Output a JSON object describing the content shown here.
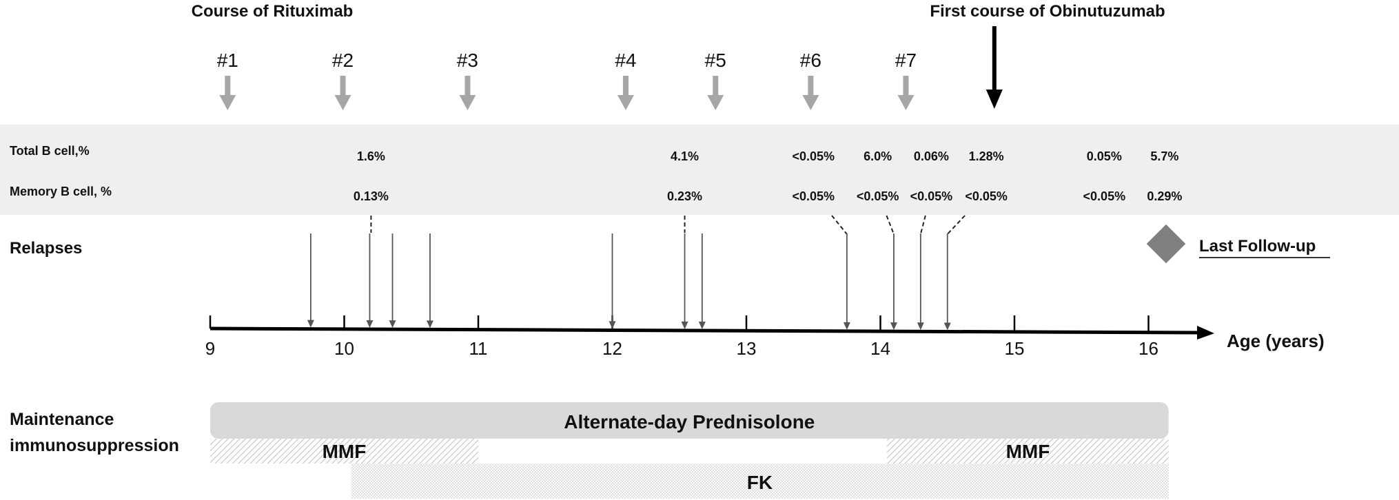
{
  "header": {
    "rituximab_title": "Course of Rituximab",
    "obinutuzumab_title": "First course of Obinutuzumab"
  },
  "rituximab_courses": [
    {
      "label": "#1",
      "age": 9.13
    },
    {
      "label": "#2",
      "age": 9.99
    },
    {
      "label": "#3",
      "age": 10.92
    },
    {
      "label": "#4",
      "age": 12.1
    },
    {
      "label": "#5",
      "age": 12.77
    },
    {
      "label": "#6",
      "age": 13.48
    },
    {
      "label": "#7",
      "age": 14.19
    }
  ],
  "obinutuzumab_course": {
    "age": 14.85
  },
  "bcells": {
    "total_label": "Total B cell,%",
    "memory_label": "Memory B cell, %",
    "measurements": [
      {
        "age": 10.2,
        "total": "1.6%",
        "memory": "0.13%",
        "relapse_age": 10.19
      },
      {
        "age": 12.54,
        "total": "4.1%",
        "memory": "0.23%",
        "relapse_age": 12.54
      },
      {
        "age": 13.5,
        "total": "<0.05%",
        "memory": "<0.05%",
        "relapse_age": 13.75
      },
      {
        "age": 13.98,
        "total": "6.0%",
        "memory": "<0.05%",
        "relapse_age": 14.1
      },
      {
        "age": 14.38,
        "total": "0.06%",
        "memory": "<0.05%",
        "relapse_age": 14.3
      },
      {
        "age": 14.79,
        "total": "1.28%",
        "memory": "<0.05%",
        "relapse_age": 14.5
      },
      {
        "age": 15.67,
        "total": "0.05%",
        "memory": "<0.05%"
      },
      {
        "age": 16.12,
        "total": "5.7%",
        "memory": "0.29%"
      }
    ]
  },
  "relapses": {
    "label": "Relapses",
    "ages": [
      9.75,
      10.19,
      10.36,
      10.64,
      12.0,
      12.54,
      12.67,
      13.75,
      14.1,
      14.3,
      14.5
    ]
  },
  "last_followup": {
    "label": "Last Follow-up"
  },
  "axis": {
    "label": "Age (years)",
    "ticks": [
      "9",
      "10",
      "11",
      "12",
      "13",
      "14",
      "15",
      "16"
    ],
    "min": 9,
    "max": 16.4
  },
  "maintenance": {
    "label_line1": "Maintenance",
    "label_line2": "immunosuppression",
    "prednisolone": {
      "label": "Alternate-day Prednisolone",
      "start": 9,
      "end": 16.15
    },
    "mmf": [
      {
        "label": "MMF",
        "start": 9,
        "end": 11
      },
      {
        "label": "MMF",
        "start": 14.05,
        "end": 16.15
      }
    ],
    "fk": {
      "label": "FK",
      "start": 10.05,
      "end": 16.15
    }
  },
  "colors": {
    "course_arrow": "#a6a6a6",
    "obinutuzumab_arrow": "#000000",
    "band": "#efefef",
    "prednisolone_bar": "#d9d9d9",
    "relapse_line": "#555555",
    "diamond": "#808080"
  }
}
